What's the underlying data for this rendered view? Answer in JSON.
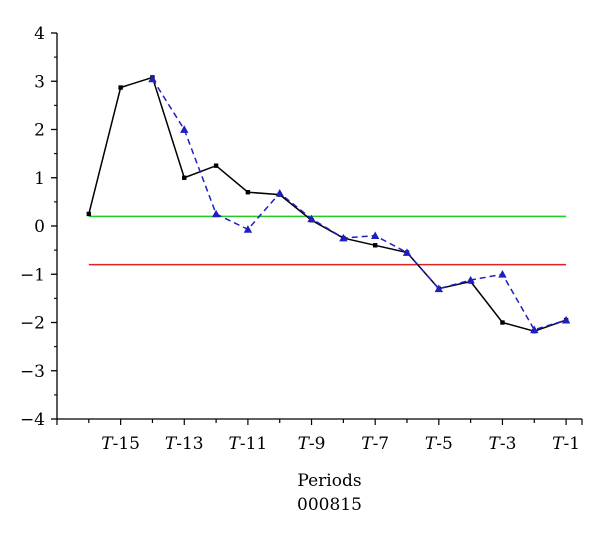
{
  "chart_data": {
    "type": "line",
    "xlabel": "Periods",
    "caption": "000815",
    "ylim": [
      -4,
      4
    ],
    "yticks": [
      4,
      3,
      2,
      1,
      0,
      -1,
      -2,
      -3,
      -4
    ],
    "xlim": [
      -17,
      -0.5
    ],
    "xticks": [
      {
        "x": -15,
        "prefix": "T",
        "suffix": "-15"
      },
      {
        "x": -13,
        "prefix": "T",
        "suffix": "-13"
      },
      {
        "x": -11,
        "prefix": "T",
        "suffix": "-11"
      },
      {
        "x": -9,
        "prefix": "T",
        "suffix": "-9"
      },
      {
        "x": -7,
        "prefix": "T",
        "suffix": "-7"
      },
      {
        "x": -5,
        "prefix": "T",
        "suffix": "-5"
      },
      {
        "x": -3,
        "prefix": "T",
        "suffix": "-3"
      },
      {
        "x": -1,
        "prefix": "T",
        "suffix": "-1"
      }
    ],
    "series": [
      {
        "style": "solid",
        "marker": "square",
        "color": "#000000",
        "x": [
          -16,
          -15,
          -14,
          -13,
          -12,
          -11,
          -10,
          -9,
          -8,
          -7,
          -6,
          -5,
          -4,
          -3,
          -2,
          -1
        ],
        "y": [
          0.25,
          2.87,
          3.08,
          1.0,
          1.25,
          0.7,
          0.65,
          0.12,
          -0.25,
          -0.4,
          -0.55,
          -1.3,
          -1.15,
          -2.0,
          -2.18,
          -1.95
        ]
      },
      {
        "style": "dashed",
        "marker": "triangle",
        "color": "#1f1fbf",
        "x": [
          -14,
          -13,
          -12,
          -11,
          -10,
          -9,
          -8,
          -7,
          -6,
          -5,
          -4,
          -3,
          -2,
          -1
        ],
        "y": [
          3.05,
          2.0,
          0.25,
          -0.07,
          0.68,
          0.15,
          -0.25,
          -0.2,
          -0.55,
          -1.3,
          -1.12,
          -1.0,
          -2.15,
          -1.95
        ]
      }
    ],
    "hlines": [
      {
        "y": 0.2,
        "color": "#22cc22",
        "x_from": -16,
        "x_to": -1
      },
      {
        "y": -0.8,
        "color": "#dd2222",
        "x_from": -16,
        "x_to": -1
      }
    ]
  }
}
